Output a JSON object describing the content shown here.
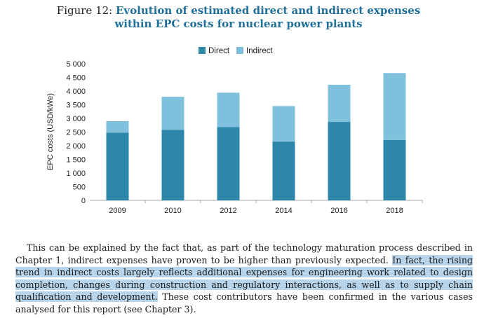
{
  "figure": {
    "label": "Figure 12:",
    "title_line1": "Evolution of estimated direct and indirect expenses",
    "title_line2": "within EPC costs for nuclear power plants"
  },
  "colors": {
    "direct": "#2e86ab",
    "indirect": "#7fc1dc",
    "title": "#1f6f9a",
    "highlight": "#b7d4ea"
  },
  "chart_data": {
    "type": "bar",
    "stacked": true,
    "categories": [
      "2009",
      "2010",
      "2012",
      "2014",
      "2016",
      "2018"
    ],
    "series": [
      {
        "name": "Direct",
        "values": [
          2480,
          2580,
          2680,
          2150,
          2870,
          2210
        ]
      },
      {
        "name": "Indirect",
        "values": [
          420,
          1210,
          1260,
          1300,
          1360,
          2450
        ]
      }
    ],
    "ylabel": "EPC costs (USD/kWe)",
    "ylim": [
      0,
      5000
    ],
    "yticks": [
      "0",
      "500",
      "1 000",
      "1 500",
      "2 000",
      "2 500",
      "3 000",
      "3 500",
      "4 000",
      "4 500",
      "5 000"
    ],
    "legend_position": "top-center",
    "grid": false
  },
  "paragraph": {
    "part1": "This can be explained by the fact that, as part of the technology maturation process described in Chapter 1, indirect expenses have proven to be higher than previously expected. ",
    "highlighted": "In fact, the rising trend in indirect costs largely reflects additional expenses for engineering work related to design completion, changes during construction and regulatory interactions, as well as to supply chain qualification and development.",
    "part2": " These cost contributors have been confirmed in the various cases analysed for this report (see Chapter 3)."
  }
}
